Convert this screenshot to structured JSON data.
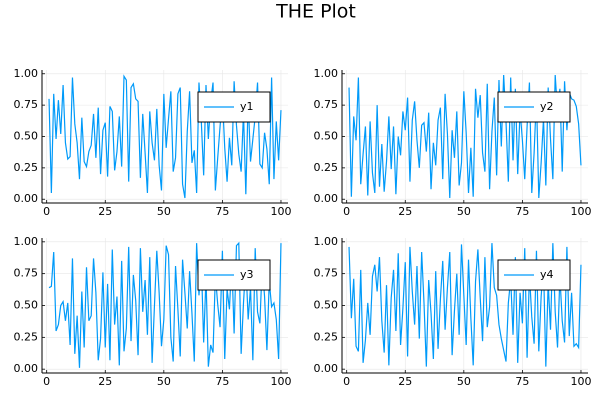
{
  "title": "THE Plot",
  "chart_data": [
    {
      "type": "line",
      "legend": "upper right",
      "grid": true,
      "xlim": [
        -2,
        103
      ],
      "xticks": [
        0,
        25,
        50,
        75,
        100
      ],
      "ylim": [
        -0.03,
        1.03
      ],
      "yticks": [
        {
          "value": 0,
          "label": "0.00"
        },
        {
          "value": 0.25,
          "label": "0.25"
        },
        {
          "value": 0.5,
          "label": "0.50"
        },
        {
          "value": 0.75,
          "label": "0.75"
        },
        {
          "value": 1,
          "label": "1.00"
        }
      ],
      "x": [
        1,
        2,
        3,
        4,
        5,
        6,
        7,
        8,
        9,
        10,
        11,
        12,
        13,
        14,
        15,
        16,
        17,
        18,
        19,
        20,
        21,
        22,
        23,
        24,
        25,
        26,
        27,
        28,
        29,
        30,
        31,
        32,
        33,
        34,
        35,
        36,
        37,
        38,
        39,
        40,
        41,
        42,
        43,
        44,
        45,
        46,
        47,
        48,
        49,
        50,
        51,
        52,
        53,
        54,
        55,
        56,
        57,
        58,
        59,
        60,
        61,
        62,
        63,
        64,
        65,
        66,
        67,
        68,
        69,
        70,
        71,
        72,
        73,
        74,
        75,
        76,
        77,
        78,
        79,
        80,
        81,
        82,
        83,
        84,
        85,
        86,
        87,
        88,
        89,
        90,
        91,
        92,
        93,
        94,
        95,
        96,
        97,
        98,
        99,
        100
      ],
      "series": [
        {
          "name": "y1",
          "color": "#009af9",
          "values": [
            0.8,
            0.05,
            0.84,
            0.48,
            0.79,
            0.52,
            0.91,
            0.45,
            0.32,
            0.34,
            0.97,
            0.6,
            0.45,
            0.16,
            0.65,
            0.3,
            0.26,
            0.38,
            0.43,
            0.68,
            0.33,
            0.73,
            0.2,
            0.55,
            0.61,
            0.18,
            0.74,
            0.7,
            0.23,
            0.38,
            0.66,
            0.26,
            0.98,
            0.95,
            0.14,
            0.89,
            0.92,
            0.8,
            0.78,
            0.17,
            0.68,
            0.37,
            0.05,
            0.7,
            0.45,
            0.31,
            0.72,
            0.27,
            0.07,
            0.84,
            0.41,
            0.64,
            0.86,
            0.22,
            0.33,
            0.84,
            0.89,
            0.12,
            0.01,
            0.54,
            0.86,
            0.29,
            0.39,
            0.05,
            0.93,
            0.62,
            0.19,
            0.91,
            0.48,
            0.78,
            0.93,
            0.07,
            0.33,
            0.58,
            0.81,
            0.41,
            0.14,
            0.49,
            0.27,
            0.94,
            0.59,
            0.36,
            0.22,
            0.69,
            0.04,
            0.8,
            0.3,
            0.48,
            0.66,
            0.93,
            0.28,
            0.25,
            0.53,
            0.4,
            0.12,
            0.97,
            0.16,
            0.62,
            0.31,
            0.71
          ]
        }
      ]
    },
    {
      "type": "line",
      "legend": "upper right",
      "grid": true,
      "xlim": [
        -2,
        103
      ],
      "xticks": [
        0,
        25,
        50,
        75,
        100
      ],
      "ylim": [
        -0.03,
        1.03
      ],
      "yticks": [
        {
          "value": 0,
          "label": "0.00"
        },
        {
          "value": 0.25,
          "label": "0.25"
        },
        {
          "value": 0.5,
          "label": "0.50"
        },
        {
          "value": 0.75,
          "label": "0.75"
        },
        {
          "value": 1,
          "label": "1.00"
        }
      ],
      "x": [
        1,
        2,
        3,
        4,
        5,
        6,
        7,
        8,
        9,
        10,
        11,
        12,
        13,
        14,
        15,
        16,
        17,
        18,
        19,
        20,
        21,
        22,
        23,
        24,
        25,
        26,
        27,
        28,
        29,
        30,
        31,
        32,
        33,
        34,
        35,
        36,
        37,
        38,
        39,
        40,
        41,
        42,
        43,
        44,
        45,
        46,
        47,
        48,
        49,
        50,
        51,
        52,
        53,
        54,
        55,
        56,
        57,
        58,
        59,
        60,
        61,
        62,
        63,
        64,
        65,
        66,
        67,
        68,
        69,
        70,
        71,
        72,
        73,
        74,
        75,
        76,
        77,
        78,
        79,
        80,
        81,
        82,
        83,
        84,
        85,
        86,
        87,
        88,
        89,
        90,
        91,
        92,
        93,
        94,
        95,
        96,
        97,
        98,
        99,
        100
      ],
      "series": [
        {
          "name": "y2",
          "color": "#009af9",
          "values": [
            0.89,
            0.02,
            0.66,
            0.47,
            0.97,
            0.12,
            0.36,
            0.58,
            0.03,
            0.62,
            0.21,
            0.05,
            0.75,
            0.1,
            0.44,
            0.06,
            0.3,
            0.66,
            0.24,
            0.58,
            0.04,
            0.5,
            0.35,
            0.7,
            0.55,
            0.81,
            0.14,
            0.63,
            0.78,
            0.47,
            0.25,
            0.59,
            0.61,
            0.38,
            0.69,
            0.08,
            0.45,
            0.27,
            0.63,
            0.73,
            0.16,
            0.84,
            0.52,
            0.01,
            0.55,
            0.33,
            0.7,
            0.11,
            0.29,
            0.86,
            0.53,
            0.05,
            0.41,
            0.02,
            0.88,
            0.65,
            0.83,
            0.37,
            0.22,
            0.92,
            0.08,
            0.54,
            0.81,
            0.19,
            0.95,
            0.42,
            0.99,
            0.62,
            0.14,
            0.97,
            0.31,
            0.88,
            0.2,
            0.71,
            0.47,
            0.16,
            0.58,
            0.93,
            0.05,
            0.37,
            0.82,
            0.01,
            0.29,
            0.64,
            0.11,
            0.89,
            0.48,
            0.16,
            0.99,
            0.7,
            0.88,
            0.22,
            0.94,
            0.55,
            0.85,
            0.8,
            0.79,
            0.74,
            0.6,
            0.27
          ]
        }
      ]
    },
    {
      "type": "line",
      "legend": "upper right",
      "grid": true,
      "xlim": [
        -2,
        103
      ],
      "xticks": [
        0,
        25,
        50,
        75,
        100
      ],
      "ylim": [
        -0.03,
        1.03
      ],
      "yticks": [
        {
          "value": 0,
          "label": "0.00"
        },
        {
          "value": 0.25,
          "label": "0.25"
        },
        {
          "value": 0.5,
          "label": "0.50"
        },
        {
          "value": 0.75,
          "label": "0.75"
        },
        {
          "value": 1,
          "label": "1.00"
        }
      ],
      "x": [
        1,
        2,
        3,
        4,
        5,
        6,
        7,
        8,
        9,
        10,
        11,
        12,
        13,
        14,
        15,
        16,
        17,
        18,
        19,
        20,
        21,
        22,
        23,
        24,
        25,
        26,
        27,
        28,
        29,
        30,
        31,
        32,
        33,
        34,
        35,
        36,
        37,
        38,
        39,
        40,
        41,
        42,
        43,
        44,
        45,
        46,
        47,
        48,
        49,
        50,
        51,
        52,
        53,
        54,
        55,
        56,
        57,
        58,
        59,
        60,
        61,
        62,
        63,
        64,
        65,
        66,
        67,
        68,
        69,
        70,
        71,
        72,
        73,
        74,
        75,
        76,
        77,
        78,
        79,
        80,
        81,
        82,
        83,
        84,
        85,
        86,
        87,
        88,
        89,
        90,
        91,
        92,
        93,
        94,
        95,
        96,
        97,
        98,
        99,
        100
      ],
      "series": [
        {
          "name": "y3",
          "color": "#009af9",
          "values": [
            0.64,
            0.65,
            0.92,
            0.3,
            0.35,
            0.5,
            0.53,
            0.38,
            0.52,
            0.19,
            0.87,
            0.12,
            0.42,
            0.01,
            0.61,
            0.17,
            0.8,
            0.38,
            0.42,
            0.87,
            0.6,
            0.07,
            0.24,
            0.76,
            0.17,
            0.67,
            0.07,
            0.94,
            0.35,
            0.57,
            0.03,
            0.85,
            0.14,
            0.32,
            0.96,
            0.22,
            0.74,
            0.54,
            0.11,
            0.95,
            0.45,
            0.7,
            0.27,
            0.88,
            0.05,
            0.5,
            0.93,
            0.6,
            0.18,
            0.39,
            0.97,
            0.9,
            0.25,
            0.06,
            0.81,
            0.47,
            0.1,
            0.86,
            0.6,
            0.32,
            0.77,
            0.44,
            0.06,
            0.99,
            0.58,
            0.85,
            0.21,
            0.72,
            0.02,
            0.19,
            0.13,
            0.74,
            0.51,
            0.33,
            0.93,
            0.08,
            0.63,
            0.47,
            0.86,
            0.28,
            0.97,
            0.99,
            0.12,
            0.52,
            0.83,
            0.39,
            0.64,
            0.07,
            0.95,
            0.45,
            0.36,
            0.82,
            0.57,
            0.15,
            0.69,
            0.49,
            0.52,
            0.39,
            0.08,
            0.99
          ]
        }
      ]
    },
    {
      "type": "line",
      "legend": "upper right",
      "grid": true,
      "xlim": [
        -2,
        103
      ],
      "xticks": [
        0,
        25,
        50,
        75,
        100
      ],
      "ylim": [
        -0.03,
        1.03
      ],
      "yticks": [
        {
          "value": 0,
          "label": "0.00"
        },
        {
          "value": 0.25,
          "label": "0.25"
        },
        {
          "value": 0.5,
          "label": "0.50"
        },
        {
          "value": 0.75,
          "label": "0.75"
        },
        {
          "value": 1,
          "label": "1.00"
        }
      ],
      "x": [
        1,
        2,
        3,
        4,
        5,
        6,
        7,
        8,
        9,
        10,
        11,
        12,
        13,
        14,
        15,
        16,
        17,
        18,
        19,
        20,
        21,
        22,
        23,
        24,
        25,
        26,
        27,
        28,
        29,
        30,
        31,
        32,
        33,
        34,
        35,
        36,
        37,
        38,
        39,
        40,
        41,
        42,
        43,
        44,
        45,
        46,
        47,
        48,
        49,
        50,
        51,
        52,
        53,
        54,
        55,
        56,
        57,
        58,
        59,
        60,
        61,
        62,
        63,
        64,
        65,
        66,
        67,
        68,
        69,
        70,
        71,
        72,
        73,
        74,
        75,
        76,
        77,
        78,
        79,
        80,
        81,
        82,
        83,
        84,
        85,
        86,
        87,
        88,
        89,
        90,
        91,
        92,
        93,
        94,
        95,
        96,
        97,
        98,
        99,
        100
      ],
      "series": [
        {
          "name": "y4",
          "color": "#009af9",
          "values": [
            0.96,
            0.4,
            0.71,
            0.18,
            0.14,
            0.78,
            0.05,
            0.23,
            0.52,
            0.27,
            0.73,
            0.82,
            0.61,
            0.88,
            0.38,
            0.13,
            0.66,
            0.03,
            0.56,
            0.78,
            0.3,
            0.91,
            0.19,
            0.48,
            0.84,
            0.1,
            0.96,
            0.61,
            0.35,
            0.81,
            0.24,
            0.92,
            0.52,
            0.02,
            0.7,
            0.44,
            0.08,
            0.77,
            0.16,
            0.55,
            0.85,
            0.31,
            0.64,
            0.92,
            0.11,
            0.46,
            0.75,
            0.27,
            0.98,
            0.58,
            0.19,
            0.86,
            0.4,
            0.03,
            0.69,
            0.94,
            0.56,
            0.22,
            0.88,
            0.33,
            0.49,
            0.99,
            0.64,
            0.58,
            0.35,
            0.24,
            0.15,
            0.06,
            0.52,
            0.71,
            0.27,
            0.88,
            0.05,
            0.6,
            0.36,
            0.95,
            0.09,
            0.75,
            0.41,
            0.2,
            0.93,
            0.14,
            0.57,
            0.82,
            0.02,
            0.68,
            0.31,
            0.99,
            0.45,
            0.17,
            0.73,
            0.38,
            0.21,
            0.96,
            0.26,
            0.6,
            0.18,
            0.2,
            0.17,
            0.82
          ]
        }
      ]
    }
  ]
}
